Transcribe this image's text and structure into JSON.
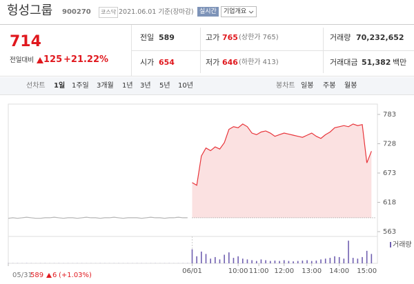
{
  "header": {
    "title": "헝성그룹",
    "code": "900270",
    "market": "코스닥",
    "date": "2021.06.01 기준(장마감)",
    "realtime": "실시간",
    "company_info": "기업개요"
  },
  "quote": {
    "price": "714",
    "change_label": "전일대비",
    "change": "125",
    "change_pct": "+21.22%",
    "stats": [
      {
        "label": "전일",
        "value": "589"
      },
      {
        "label": "고가",
        "value": "765",
        "note": "(상한가 765)"
      },
      {
        "label": "거래량",
        "value": "70,232,652"
      },
      {
        "label": "시가",
        "value": "654"
      },
      {
        "label": "저가",
        "value": "646",
        "note": "(하한가 413)"
      },
      {
        "label": "거래대금",
        "value": "51,382",
        "unit": "백만"
      }
    ]
  },
  "tabs": {
    "line_label": "선차트",
    "line": [
      "1일",
      "1주일",
      "3개월",
      "1년",
      "3년",
      "5년",
      "10년"
    ],
    "selected": 0,
    "candle_label": "봉차트",
    "candle": [
      "일봉",
      "주봉",
      "월봉"
    ]
  },
  "chart_data": {
    "type": "line",
    "series": [
      {
        "color": "#b4b4b4",
        "values": [
          588,
          589,
          588,
          589,
          590,
          589,
          588,
          588,
          589,
          589,
          590,
          589,
          588,
          589,
          589,
          588,
          589,
          590,
          589,
          589,
          588,
          589,
          589,
          590,
          589,
          588,
          589,
          589,
          589,
          588,
          589,
          590,
          589,
          589,
          588,
          589,
          589,
          590,
          589,
          589,
          null,
          null,
          null,
          null,
          null,
          null,
          null,
          null,
          null,
          null,
          null,
          null,
          null,
          null,
          null,
          null,
          null,
          null,
          null,
          null,
          null,
          null,
          null,
          null,
          null,
          null,
          null,
          null,
          null,
          null,
          null,
          null,
          null,
          null,
          null,
          null,
          null,
          null,
          null,
          null
        ]
      },
      {
        "color": "#e8343a",
        "fill": "#fbe1e1",
        "values": [
          null,
          null,
          null,
          null,
          null,
          null,
          null,
          null,
          null,
          null,
          null,
          null,
          null,
          null,
          null,
          null,
          null,
          null,
          null,
          null,
          null,
          null,
          null,
          null,
          null,
          null,
          null,
          null,
          null,
          null,
          null,
          null,
          null,
          null,
          null,
          null,
          null,
          null,
          null,
          null,
          655,
          650,
          705,
          720,
          715,
          722,
          718,
          730,
          755,
          760,
          758,
          765,
          760,
          748,
          745,
          750,
          752,
          748,
          742,
          745,
          748,
          746,
          744,
          742,
          740,
          744,
          748,
          742,
          738,
          745,
          750,
          758,
          760,
          762,
          760,
          765,
          762,
          764,
          692,
          714
        ]
      }
    ],
    "prev_close": 589,
    "volume": {
      "name": "거래량",
      "color": "#6f5fb0",
      "values": [
        20000,
        15000,
        18000,
        12000,
        20000,
        15000,
        10000,
        12000,
        15000,
        10000,
        12000,
        15000,
        10000,
        12000,
        10000,
        15000,
        12000,
        10000,
        12000,
        10000,
        15000,
        12000,
        10000,
        12000,
        15000,
        10000,
        12000,
        10000,
        15000,
        12000,
        10000,
        12000,
        15000,
        10000,
        12000,
        15000,
        10000,
        12000,
        15000,
        20000,
        1800000,
        900000,
        1500000,
        1200000,
        600000,
        800000,
        500000,
        1100000,
        1400000,
        700000,
        900000,
        600000,
        500000,
        400000,
        300000,
        500000,
        400000,
        300000,
        350000,
        300000,
        400000,
        300000,
        250000,
        300000,
        350000,
        400000,
        300000,
        350000,
        500000,
        600000,
        700000,
        900000,
        800000,
        600000,
        2900000,
        700000,
        600000,
        800000,
        1600000,
        1200000
      ]
    },
    "vlim": [
      0,
      3000000
    ],
    "xlim": [
      0,
      80
    ],
    "xticks": [
      {
        "value": 0,
        "label": "05/31"
      },
      {
        "value": 40,
        "label": "06/01"
      },
      {
        "value": 50,
        "label": "10:00"
      },
      {
        "value": 54.5,
        "label": "11:00"
      },
      {
        "value": 60,
        "label": "12:00"
      },
      {
        "value": 66,
        "label": "13:00"
      },
      {
        "value": 72,
        "label": "14:00"
      },
      {
        "value": 78,
        "label": "15:00"
      }
    ],
    "ylim": [
      563,
      783
    ],
    "yticks": [
      563,
      618,
      673,
      728,
      783
    ]
  },
  "footer": {
    "price": "589",
    "change": "6",
    "change_pct": "(+1.03%)"
  }
}
